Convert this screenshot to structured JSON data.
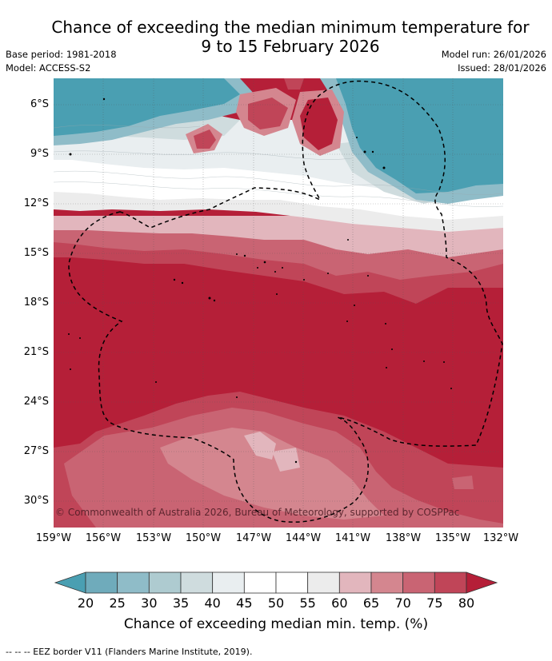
{
  "title": {
    "line1": "Chance of exceeding the median minimum temperature for",
    "line2": "9 to 15 February 2026"
  },
  "meta": {
    "base_period": "Base period: 1981-2018",
    "model": "Model: ACCESS-S2",
    "model_run": "Model run: 26/01/2026",
    "issued": "Issued: 28/01/2026"
  },
  "copyright": "© Commonwealth of Australia 2026, Bureau of Meteorology, supported by COSPPac",
  "axes": {
    "lat_labels": [
      "6°S",
      "9°S",
      "12°S",
      "15°S",
      "18°S",
      "21°S",
      "24°S",
      "27°S",
      "30°S"
    ],
    "lon_labels": [
      "159°W",
      "156°W",
      "153°W",
      "150°W",
      "147°W",
      "144°W",
      "141°W",
      "138°W",
      "135°W",
      "132°W"
    ]
  },
  "colorbar": {
    "ticks": [
      "20",
      "25",
      "30",
      "35",
      "40",
      "45",
      "50",
      "55",
      "60",
      "65",
      "70",
      "75",
      "80"
    ],
    "colors": [
      "#4a9fb2",
      "#6fabbb",
      "#8fbcc8",
      "#aecbd0",
      "#cfdcde",
      "#e9eef0",
      "#ffffff",
      "#ffffff",
      "#ececec",
      "#e2b6bd",
      "#d4868f",
      "#c96473",
      "#c04558",
      "#b51f38"
    ],
    "title": "Chance of exceeding median min. temp. (%)"
  },
  "footer": "-- -- -- EEZ border V11 (Flanders Marine Institute, 2019)."
}
